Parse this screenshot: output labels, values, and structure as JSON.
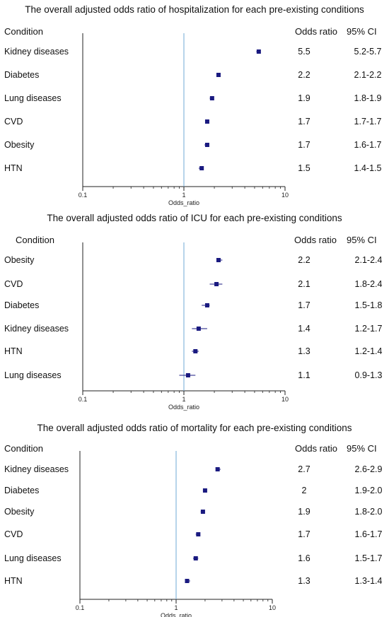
{
  "colors": {
    "marker": "#1a1a80",
    "refline": "#6fa8d6",
    "axis": "#222222"
  },
  "headers": {
    "condition": "Condition",
    "odds_ratio": "Odds ratio",
    "ci": "95% CI"
  },
  "chart_data": [
    {
      "type": "forest",
      "title": "The overall adjusted odds ratio of hospitalization for each pre-existing conditions",
      "xlabel": "Odds_ratio",
      "xscale": "log",
      "xlim": [
        0.1,
        10
      ],
      "xticks": [
        "0.1",
        "1",
        "10"
      ],
      "reference_line": 1,
      "rows": [
        {
          "condition": "Kidney diseases",
          "or": 5.5,
          "lo": 5.2,
          "hi": 5.7,
          "or_text": "5.5",
          "ci_text": "5.2-5.7"
        },
        {
          "condition": "Diabetes",
          "or": 2.2,
          "lo": 2.1,
          "hi": 2.2,
          "or_text": "2.2",
          "ci_text": "2.1-2.2"
        },
        {
          "condition": "Lung diseases",
          "or": 1.9,
          "lo": 1.8,
          "hi": 1.9,
          "or_text": "1.9",
          "ci_text": "1.8-1.9"
        },
        {
          "condition": "CVD",
          "or": 1.7,
          "lo": 1.7,
          "hi": 1.7,
          "or_text": "1.7",
          "ci_text": "1.7-1.7"
        },
        {
          "condition": "Obesity",
          "or": 1.7,
          "lo": 1.6,
          "hi": 1.7,
          "or_text": "1.7",
          "ci_text": "1.6-1.7"
        },
        {
          "condition": "HTN",
          "or": 1.5,
          "lo": 1.4,
          "hi": 1.5,
          "or_text": "1.5",
          "ci_text": "1.4-1.5"
        }
      ]
    },
    {
      "type": "forest",
      "title": "The overall adjusted odds ratio of ICU for each pre-existing conditions",
      "xlabel": "Odds_ratio",
      "xscale": "log",
      "xlim": [
        0.1,
        10
      ],
      "xticks": [
        "0.1",
        "1",
        "10"
      ],
      "reference_line": 1,
      "rows": [
        {
          "condition": "Obesity",
          "or": 2.2,
          "lo": 2.1,
          "hi": 2.4,
          "or_text": "2.2",
          "ci_text": "2.1-2.4"
        },
        {
          "condition": "CVD",
          "or": 2.1,
          "lo": 1.8,
          "hi": 2.4,
          "or_text": "2.1",
          "ci_text": "1.8-2.4"
        },
        {
          "condition": "Diabetes",
          "or": 1.7,
          "lo": 1.5,
          "hi": 1.8,
          "or_text": "1.7",
          "ci_text": "1.5-1.8"
        },
        {
          "condition": "Kidney diseases",
          "or": 1.4,
          "lo": 1.2,
          "hi": 1.7,
          "or_text": "1.4",
          "ci_text": "1.2-1.7"
        },
        {
          "condition": "HTN",
          "or": 1.3,
          "lo": 1.2,
          "hi": 1.4,
          "or_text": "1.3",
          "ci_text": "1.2-1.4"
        },
        {
          "condition": "Lung diseases",
          "or": 1.1,
          "lo": 0.9,
          "hi": 1.3,
          "or_text": "1.1",
          "ci_text": "0.9-1.3"
        }
      ]
    },
    {
      "type": "forest",
      "title": "The overall adjusted odds ratio of mortality for each pre-existing conditions",
      "xlabel": "Odds_ratio",
      "xscale": "log",
      "xlim": [
        0.1,
        10
      ],
      "xticks": [
        "0.1",
        "1",
        "10"
      ],
      "reference_line": 1,
      "rows": [
        {
          "condition": "Kidney diseases",
          "or": 2.7,
          "lo": 2.6,
          "hi": 2.9,
          "or_text": "2.7",
          "ci_text": "2.6-2.9"
        },
        {
          "condition": "Diabetes",
          "or": 2.0,
          "lo": 1.9,
          "hi": 2.0,
          "or_text": "2",
          "ci_text": "1.9-2.0"
        },
        {
          "condition": "Obesity",
          "or": 1.9,
          "lo": 1.8,
          "hi": 2.0,
          "or_text": "1.9",
          "ci_text": "1.8-2.0"
        },
        {
          "condition": "CVD",
          "or": 1.7,
          "lo": 1.6,
          "hi": 1.7,
          "or_text": "1.7",
          "ci_text": "1.6-1.7"
        },
        {
          "condition": "Lung diseases",
          "or": 1.6,
          "lo": 1.5,
          "hi": 1.7,
          "or_text": "1.6",
          "ci_text": "1.5-1.7"
        },
        {
          "condition": "HTN",
          "or": 1.3,
          "lo": 1.3,
          "hi": 1.4,
          "or_text": "1.3",
          "ci_text": "1.3-1.4"
        }
      ]
    }
  ]
}
